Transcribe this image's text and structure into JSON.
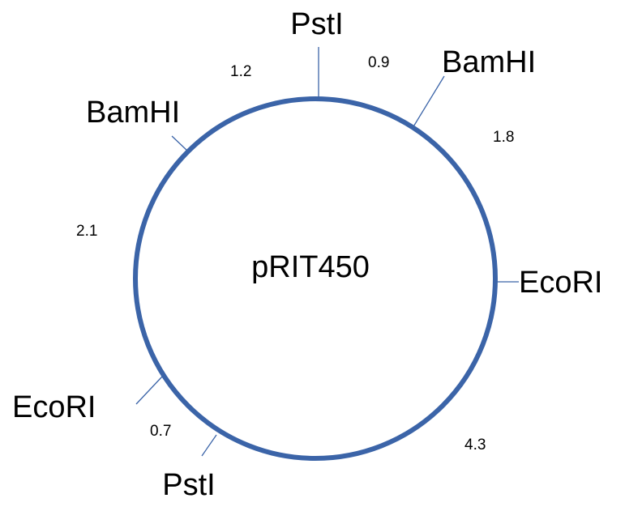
{
  "plasmid": {
    "name": "pRIT450",
    "ring_color": "#3b64a8"
  },
  "sites": [
    {
      "id": "psti-top",
      "label": "PstI"
    },
    {
      "id": "bamhi-right",
      "label": "BamHI"
    },
    {
      "id": "ecori-right",
      "label": "EcoRI"
    },
    {
      "id": "psti-bottom",
      "label": "PstI"
    },
    {
      "id": "ecori-left",
      "label": "EcoRI"
    },
    {
      "id": "bamhi-left",
      "label": "BamHI"
    }
  ],
  "distances": [
    {
      "id": "psti-top-to-bamhi-right",
      "value": "0.9"
    },
    {
      "id": "bamhi-right-to-ecori-right",
      "value": "1.8"
    },
    {
      "id": "ecori-right-to-psti-bottom",
      "value": "4.3"
    },
    {
      "id": "psti-bottom-to-ecori-left",
      "value": "0.7"
    },
    {
      "id": "ecori-left-to-bamhi-left",
      "value": "2.1"
    },
    {
      "id": "bamhi-left-to-psti-top",
      "value": "1.2"
    }
  ]
}
